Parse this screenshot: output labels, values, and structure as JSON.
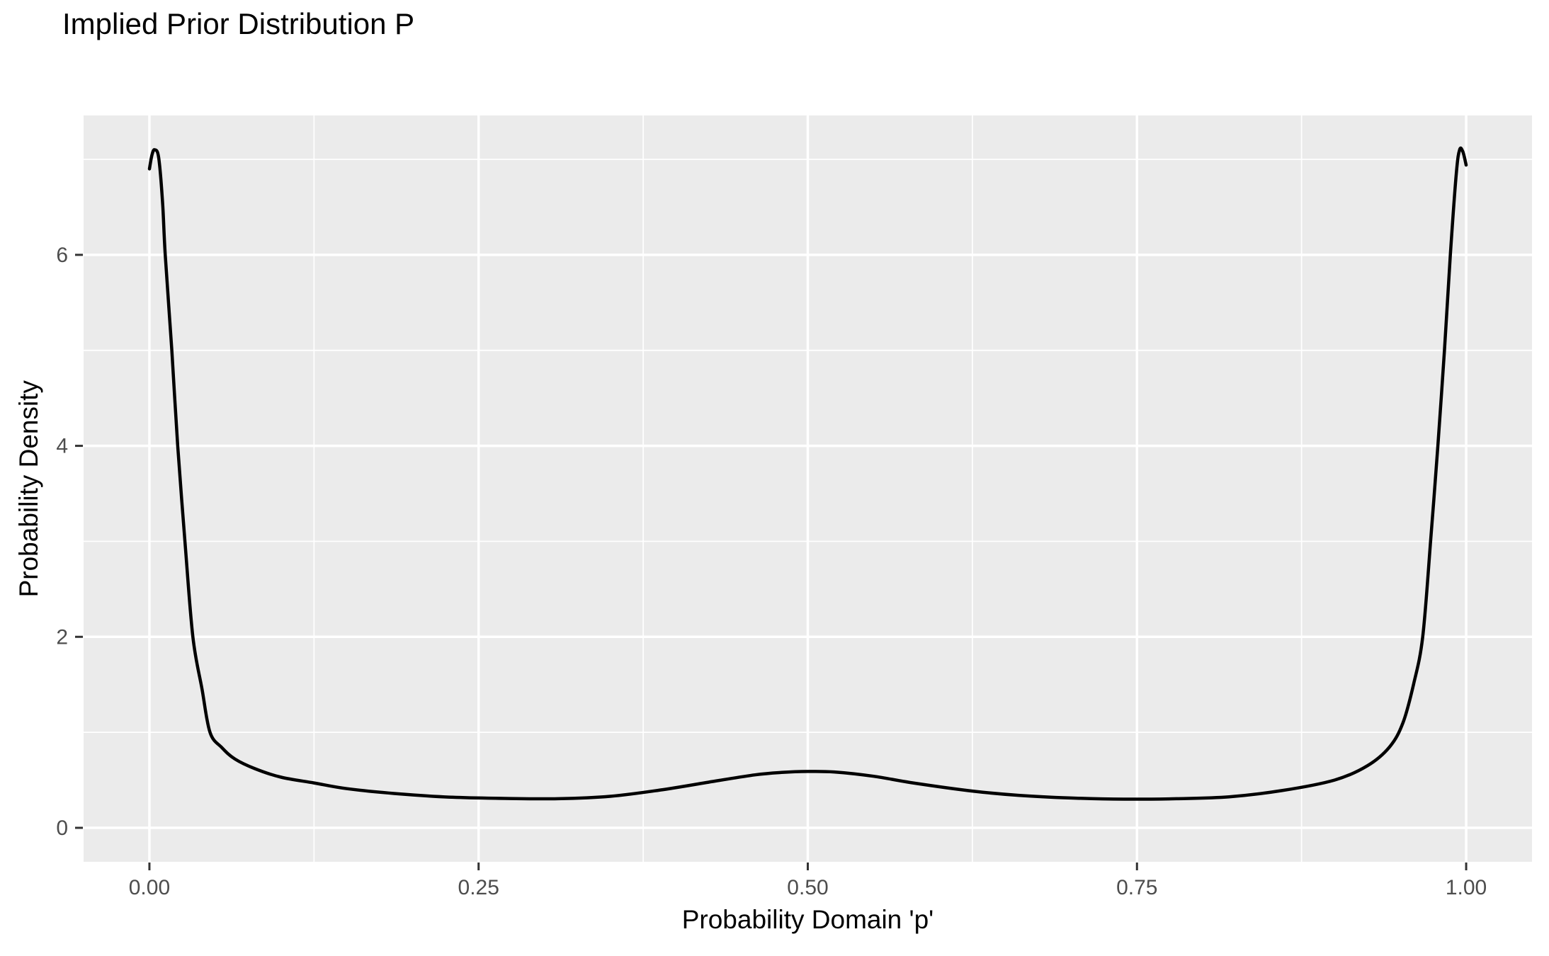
{
  "chart_data": {
    "type": "line",
    "title": "Implied Prior Distribution P",
    "xlabel": "Probability Domain 'p'",
    "ylabel": "Probability Density",
    "legend": "none",
    "grid": "major and minor white gridlines on grey panel",
    "xlim": [
      -0.05,
      1.05
    ],
    "ylim": [
      -0.356,
      7.46
    ],
    "x_ticks": {
      "values": [
        0,
        0.25,
        0.5,
        0.75,
        1.0
      ],
      "labels": [
        "0.00",
        "0.25",
        "0.50",
        "0.75",
        "1.00"
      ],
      "minor": [
        0.125,
        0.375,
        0.625,
        0.875
      ]
    },
    "y_ticks": {
      "values": [
        0,
        2,
        4,
        6
      ],
      "labels": [
        "0",
        "2",
        "4",
        "6"
      ],
      "minor": [
        1,
        3,
        5,
        7
      ]
    },
    "series": [
      {
        "name": "density",
        "x": [
          0.0,
          0.002,
          0.004,
          0.007,
          0.01,
          0.012,
          0.017,
          0.0215,
          0.027,
          0.033,
          0.04,
          0.046,
          0.055,
          0.065,
          0.08,
          0.1,
          0.125,
          0.15,
          0.19,
          0.23,
          0.27,
          0.31,
          0.35,
          0.39,
          0.43,
          0.46,
          0.48,
          0.5,
          0.52,
          0.55,
          0.58,
          0.625,
          0.66,
          0.7,
          0.74,
          0.78,
          0.82,
          0.86,
          0.9,
          0.925,
          0.942,
          0.952,
          0.96,
          0.967,
          0.973,
          0.9785,
          0.9835,
          0.988,
          0.9925,
          0.995,
          0.9975,
          1.0
        ],
        "y": [
          6.9,
          7.05,
          7.1,
          7.02,
          6.55,
          6.0,
          5.0,
          4.0,
          3.0,
          2.0,
          1.45,
          1.0,
          0.84,
          0.72,
          0.62,
          0.53,
          0.47,
          0.41,
          0.355,
          0.32,
          0.308,
          0.305,
          0.33,
          0.4,
          0.49,
          0.555,
          0.58,
          0.59,
          0.585,
          0.54,
          0.47,
          0.385,
          0.34,
          0.312,
          0.3,
          0.305,
          0.325,
          0.39,
          0.5,
          0.65,
          0.85,
          1.1,
          1.5,
          2.0,
          3.0,
          4.0,
          5.0,
          6.0,
          6.85,
          7.1,
          7.08,
          6.94
        ]
      }
    ]
  },
  "style": {
    "panel_fill": "#EBEBEB",
    "gridline_color": "#FFFFFF",
    "curve_color": "#000000",
    "tick_mark_color": "#333333",
    "tick_label_color": "#4D4D4D",
    "title_color": "#000000"
  }
}
